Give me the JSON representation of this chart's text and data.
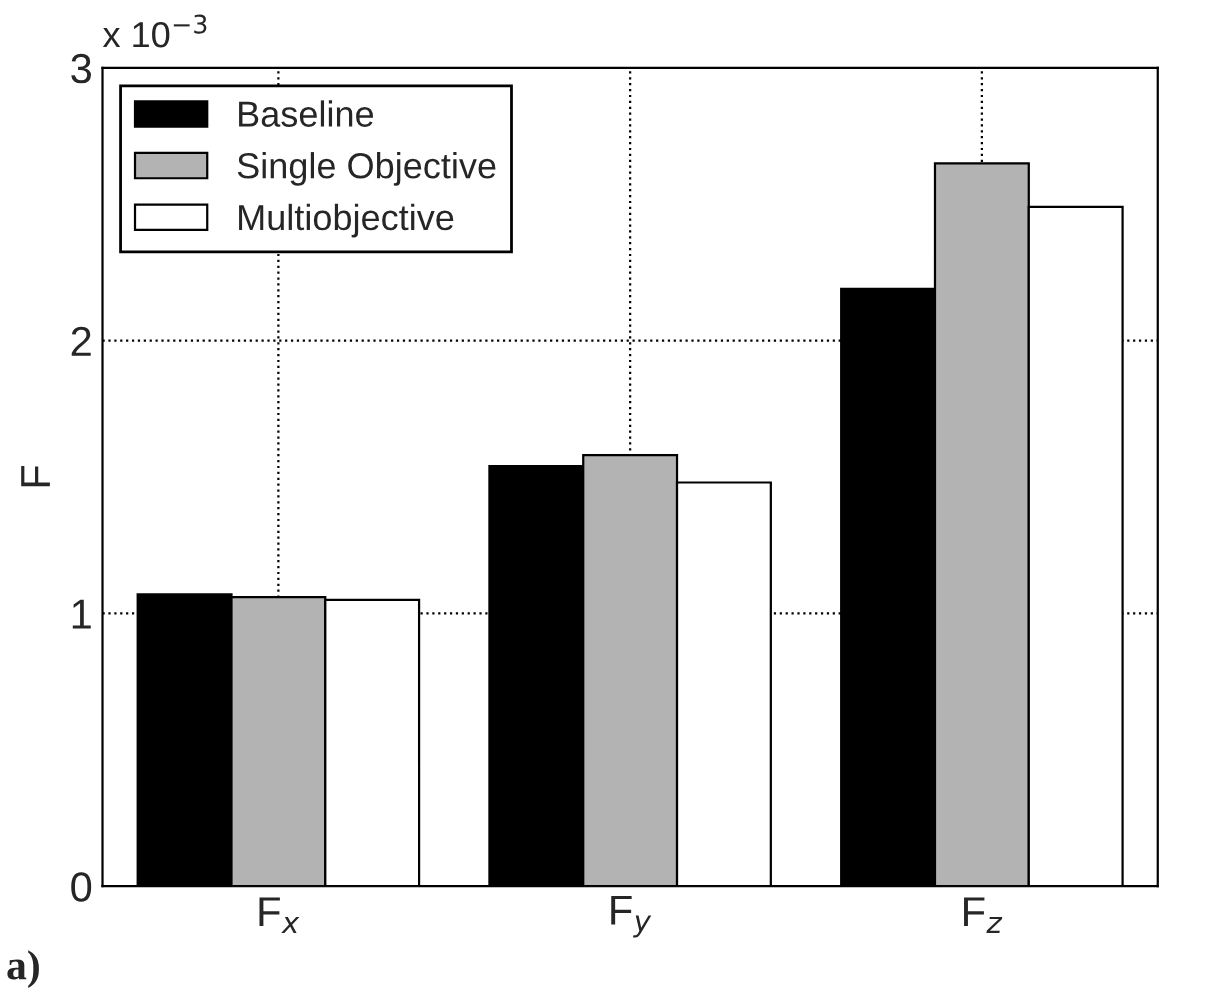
{
  "chart_data": {
    "type": "bar",
    "ylabel": "F",
    "categories": [
      "F$_{x}$",
      "F$_{y}$",
      "F$_{z}$"
    ],
    "series": [
      {
        "name": "Baseline",
        "color": "#000000",
        "values": [
          1.07,
          1.54,
          2.19
        ]
      },
      {
        "name": "Single Objective",
        "color": "#b3b3b3",
        "values": [
          1.06,
          1.58,
          2.65
        ]
      },
      {
        "name": "Multiobjective",
        "color": "#ffffff",
        "values": [
          1.05,
          1.48,
          2.49
        ]
      }
    ],
    "ylim": [
      0,
      3
    ],
    "yticks": [
      0,
      1,
      2,
      3
    ],
    "grid": true,
    "legend": "top left",
    "annotations": [
      "x 10$^{−3}$",
      "a)"
    ]
  }
}
